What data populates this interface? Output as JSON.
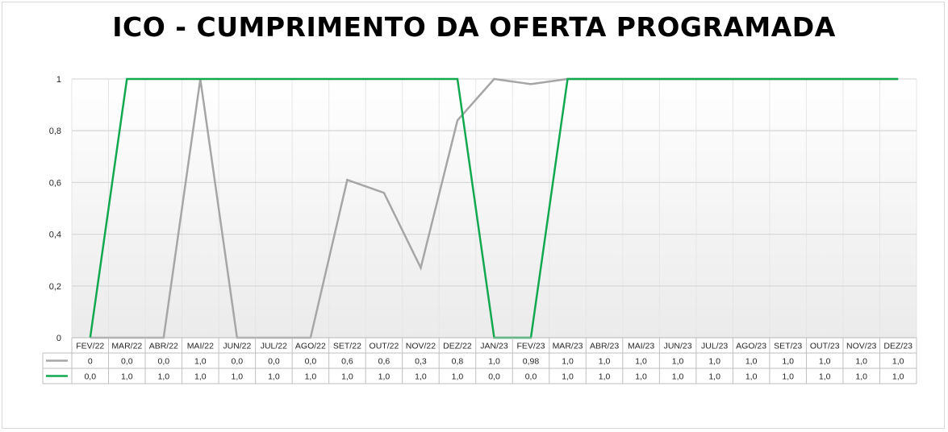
{
  "title": "ICO - CUMPRIMENTO DA OFERTA PROGRAMADA",
  "chart_data": {
    "type": "line",
    "title": "ICO - CUMPRIMENTO DA OFERTA PROGRAMADA",
    "xlabel": "",
    "ylabel": "",
    "ylim": [
      0,
      1
    ],
    "y_ticks": [
      "0",
      "0,2",
      "0,4",
      "0,6",
      "0,8",
      "1"
    ],
    "y_tick_values": [
      0,
      0.2,
      0.4,
      0.6,
      0.8,
      1
    ],
    "grid": true,
    "legend": "data-table-bottom",
    "categories": [
      "FEV/22",
      "MAR/22",
      "ABR/22",
      "MAI/22",
      "JUN/22",
      "JUL/22",
      "AGO/22",
      "SET/22",
      "OUT/22",
      "NOV/22",
      "DEZ/22",
      "JAN/23",
      "FEV/23",
      "MAR/23",
      "ABR/23",
      "MAI/23",
      "JUN/23",
      "JUL/23",
      "AGO/23",
      "SET/23",
      "OUT/23",
      "NOV/23",
      "DEZ/23"
    ],
    "series": [
      {
        "color": "#a6a6a6",
        "values": [
          0,
          0,
          0,
          1,
          0,
          0,
          0,
          0.61,
          0.56,
          0.27,
          0.84,
          1,
          0.98,
          1,
          1,
          1,
          1,
          1,
          1,
          1,
          1,
          1,
          1
        ],
        "labels": [
          "0",
          "0,0",
          "0,0",
          "1,0",
          "0,0",
          "0,0",
          "0,0",
          "0,6",
          "0,6",
          "0,3",
          "0,8",
          "1,0",
          "0,98",
          "1,0",
          "1,0",
          "1,0",
          "1,0",
          "1,0",
          "1,0",
          "1,0",
          "1,0",
          "1,0",
          "1,0"
        ]
      },
      {
        "color": "#12a84f",
        "values": [
          0,
          1,
          1,
          1,
          1,
          1,
          1,
          1,
          1,
          1,
          1,
          0,
          0,
          1,
          1,
          1,
          1,
          1,
          1,
          1,
          1,
          1,
          1
        ],
        "labels": [
          "0,0",
          "1,0",
          "1,0",
          "1,0",
          "1,0",
          "1,0",
          "1,0",
          "1,0",
          "1,0",
          "1,0",
          "1,0",
          "0,0",
          "0,0",
          "1,0",
          "1,0",
          "1,0",
          "1,0",
          "1,0",
          "1,0",
          "1,0",
          "1,0",
          "1,0",
          "1,0"
        ]
      }
    ]
  }
}
